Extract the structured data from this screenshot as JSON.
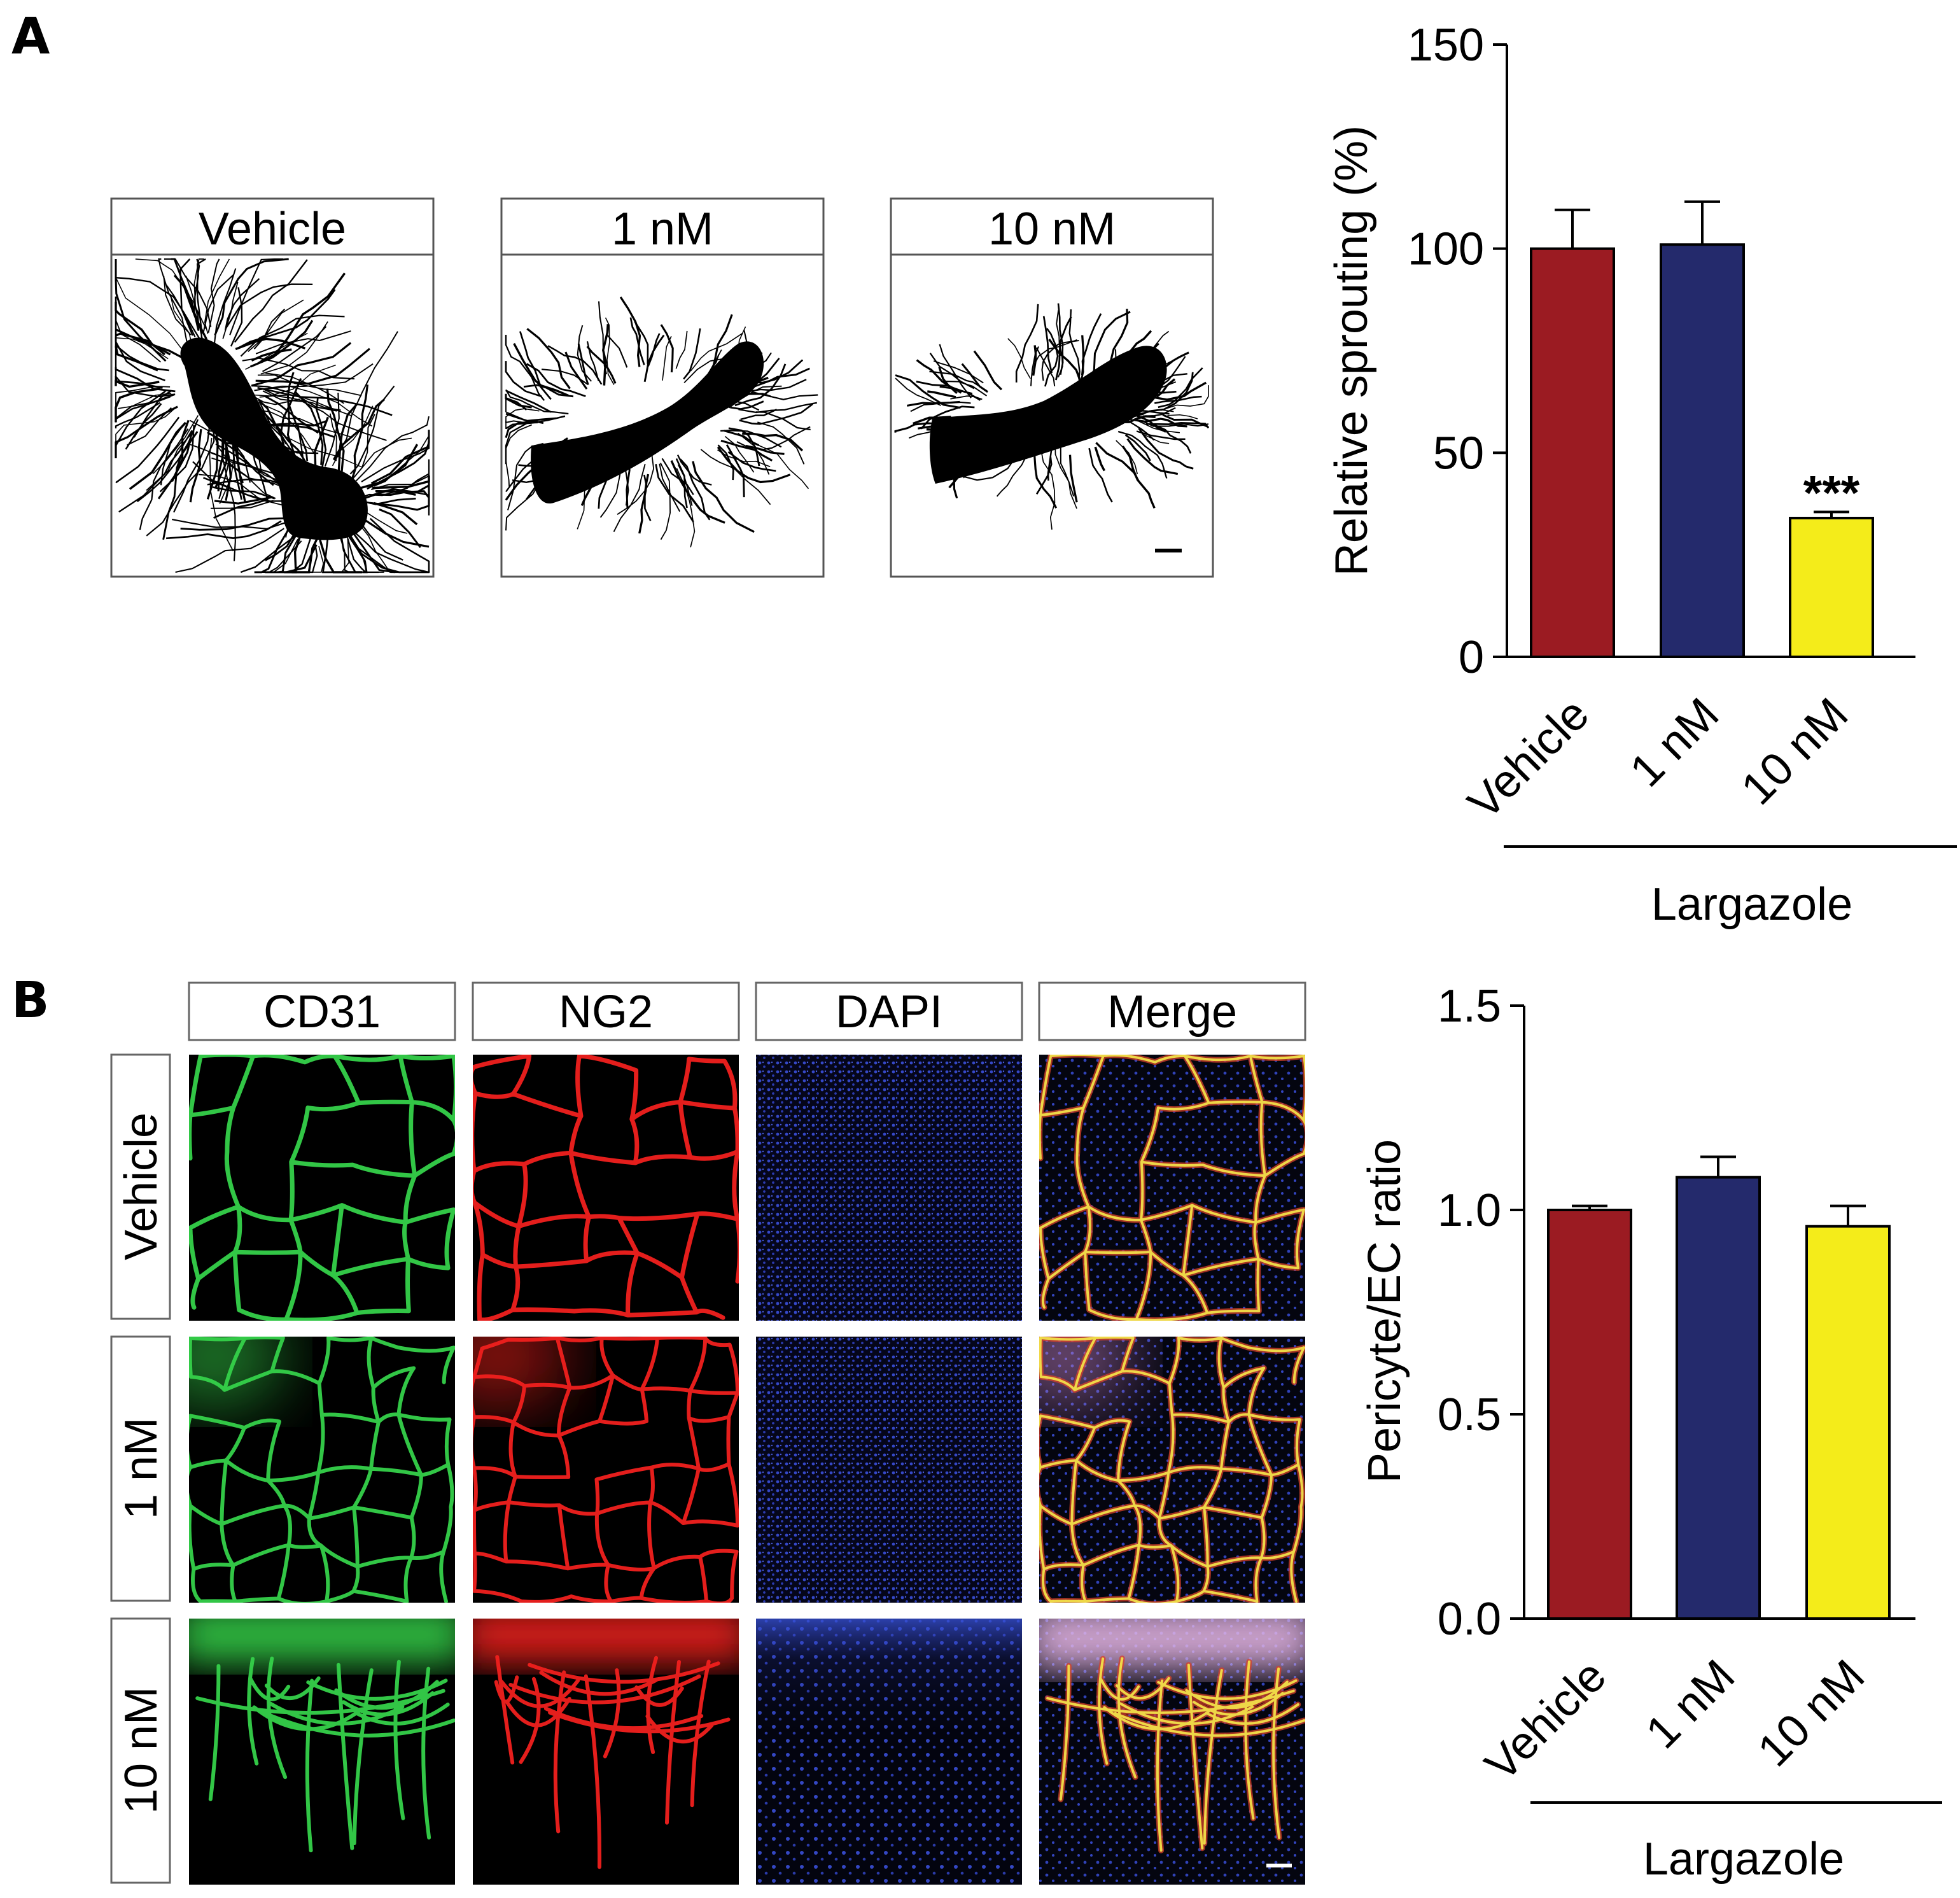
{
  "panelA": {
    "letter": "A",
    "image_labels": [
      "Vehicle",
      "1 nM",
      "10 nM"
    ]
  },
  "panelB": {
    "letter": "B",
    "column_labels": [
      "CD31",
      "NG2",
      "DAPI",
      "Merge"
    ],
    "row_labels": [
      "Vehicle",
      "1 nM",
      "10 nM"
    ]
  },
  "colors": {
    "vehicle": "#9b1b22",
    "nm1": "#242a6c",
    "nm10": "#f4ec1a",
    "cd31_label": "#1f8a3b",
    "ng2_label": "#d8262b",
    "dapi_label": "#3b4aa8",
    "merge_label": "#000000"
  },
  "chart_data": [
    {
      "type": "bar",
      "categories": [
        "Vehicle",
        "1 nM",
        "10 nM"
      ],
      "values": [
        100,
        101,
        34
      ],
      "errors": [
        9.5,
        10.5,
        1.5
      ],
      "annotations": [
        "",
        "",
        "***"
      ],
      "ylabel": "Relative sprouting (%)",
      "ylim": [
        0,
        150
      ],
      "yticks": [
        0,
        50,
        100,
        150
      ],
      "group_label": "Largazole"
    },
    {
      "type": "bar",
      "categories": [
        "Vehicle",
        "1 nM",
        "10 nM"
      ],
      "values": [
        1.0,
        1.08,
        0.96
      ],
      "errors": [
        0.01,
        0.05,
        0.05
      ],
      "ylabel": "Pericyte/EC ratio",
      "ylim": [
        0,
        1.5
      ],
      "yticks": [
        "0.0",
        "0.5",
        "1.0",
        "1.5"
      ],
      "group_label": "Largazole"
    }
  ]
}
